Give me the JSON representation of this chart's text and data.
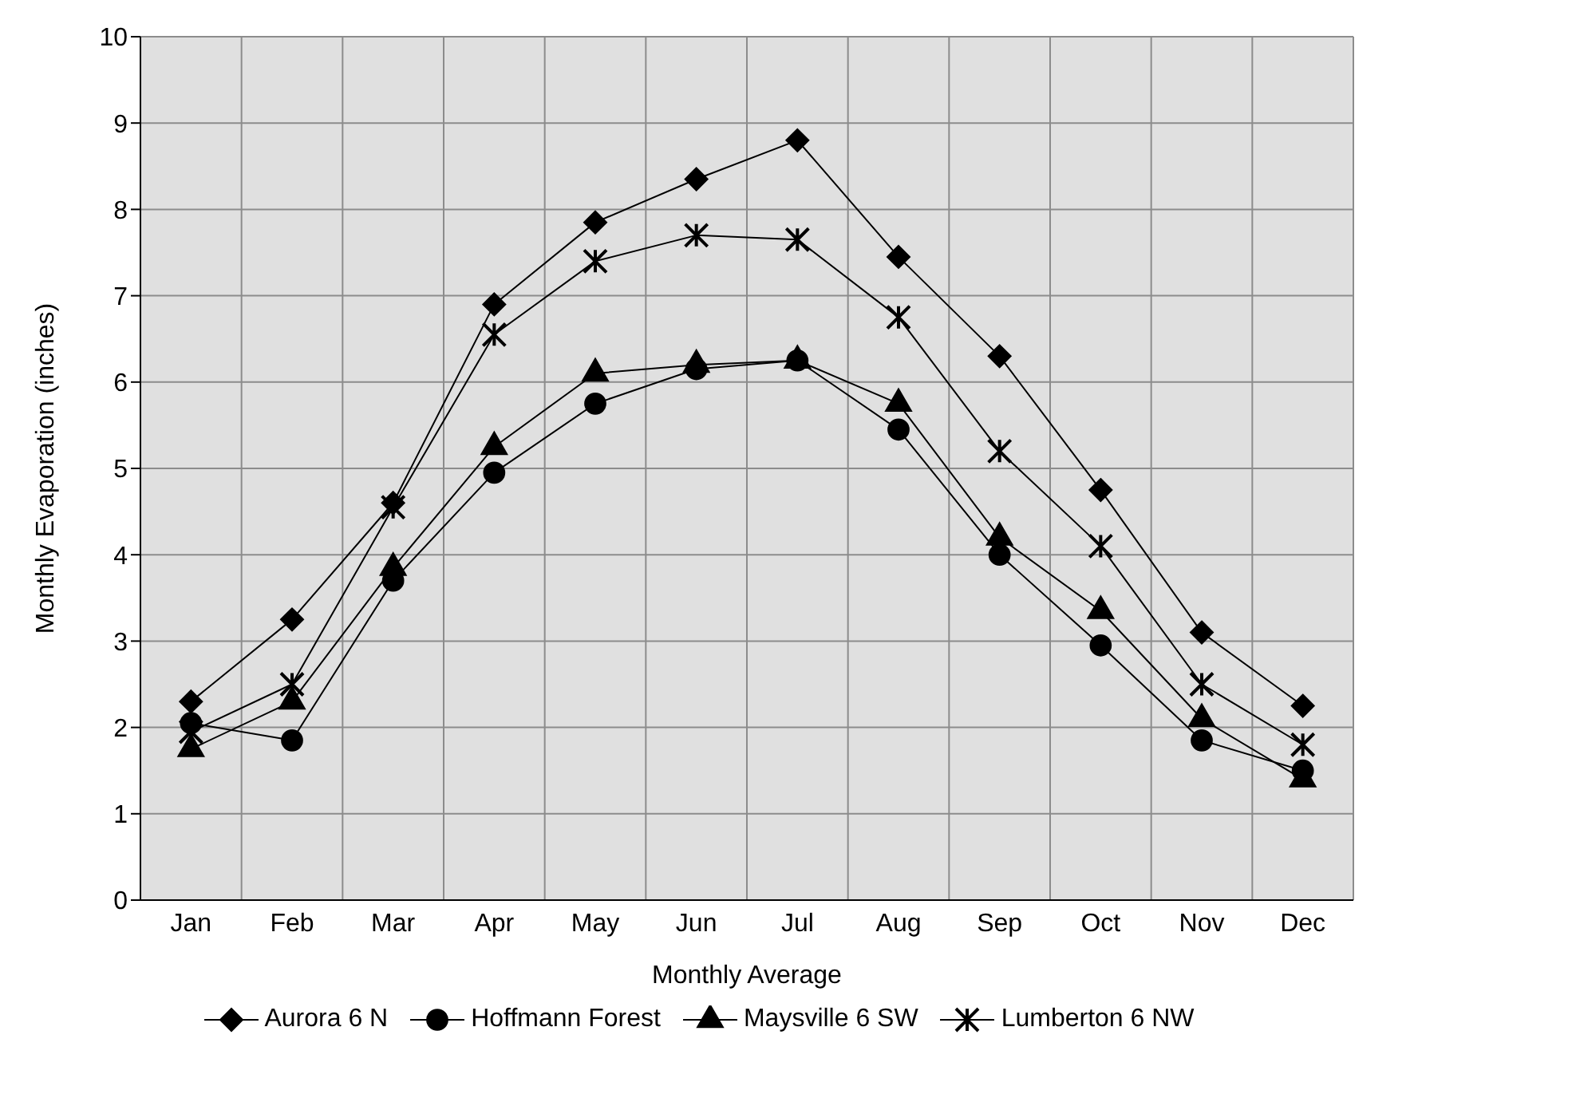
{
  "chart_data": {
    "type": "line",
    "xlabel": "Monthly Average",
    "ylabel": "Monthly Evaporation (inches)",
    "categories": [
      "Jan",
      "Feb",
      "Mar",
      "Apr",
      "May",
      "Jun",
      "Jul",
      "Aug",
      "Sep",
      "Oct",
      "Nov",
      "Dec"
    ],
    "ylim": [
      0,
      10
    ],
    "yticks": [
      0,
      1,
      2,
      3,
      4,
      5,
      6,
      7,
      8,
      9,
      10
    ],
    "grid": true,
    "legend": "bottom",
    "line_style": "solid",
    "series": [
      {
        "name": "Aurora 6 N",
        "color": "#000000",
        "marker": "diamond",
        "values": [
          2.3,
          3.25,
          4.6,
          6.9,
          7.85,
          8.35,
          8.8,
          7.45,
          6.3,
          4.75,
          3.1,
          2.25
        ]
      },
      {
        "name": "Hoffmann Forest",
        "color": "#000000",
        "marker": "circle",
        "values": [
          2.05,
          1.85,
          3.7,
          4.95,
          5.75,
          6.15,
          6.25,
          5.45,
          4.0,
          2.95,
          1.85,
          1.5
        ]
      },
      {
        "name": "Maysville 6 SW",
        "color": "#000000",
        "marker": "triangle",
        "values": [
          1.75,
          2.3,
          3.85,
          5.25,
          6.1,
          6.2,
          6.25,
          5.75,
          4.2,
          3.35,
          2.1,
          1.4
        ]
      },
      {
        "name": "Lumberton 6 NW",
        "color": "#000000",
        "marker": "cross",
        "values": [
          1.95,
          2.5,
          4.55,
          6.55,
          7.4,
          7.7,
          7.65,
          6.75,
          5.2,
          4.1,
          2.5,
          1.8
        ]
      }
    ]
  }
}
